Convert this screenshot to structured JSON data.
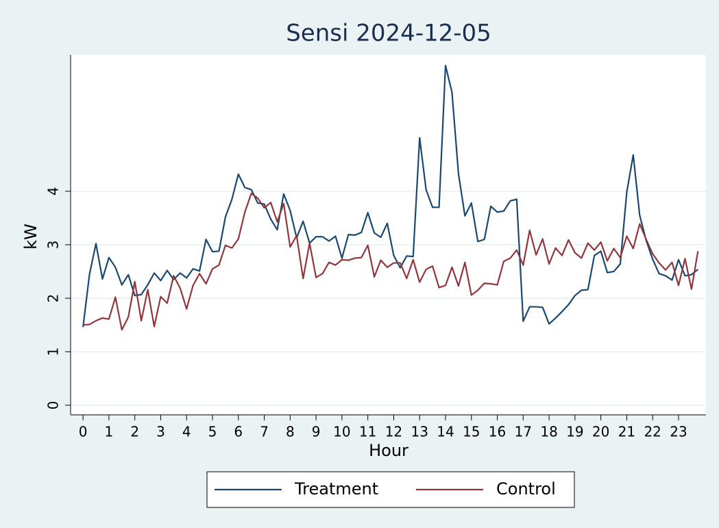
{
  "chart_data": {
    "type": "line",
    "title": "Sensi 2024-12-05",
    "x_label": "Hour",
    "y_label": "kW",
    "x": [
      0,
      0.25,
      0.5,
      0.75,
      1,
      1.25,
      1.5,
      1.75,
      2,
      2.25,
      2.5,
      2.75,
      3,
      3.25,
      3.5,
      3.75,
      4,
      4.25,
      4.5,
      4.75,
      5,
      5.25,
      5.5,
      5.75,
      6,
      6.25,
      6.5,
      6.75,
      7,
      7.25,
      7.5,
      7.75,
      8,
      8.25,
      8.5,
      8.75,
      9,
      9.25,
      9.5,
      9.75,
      10,
      10.25,
      10.5,
      10.75,
      11,
      11.25,
      11.5,
      11.75,
      12,
      12.25,
      12.5,
      12.75,
      13,
      13.25,
      13.5,
      13.75,
      14,
      14.25,
      14.5,
      14.75,
      15,
      15.25,
      15.5,
      15.75,
      16,
      16.25,
      16.5,
      16.75,
      17,
      17.25,
      17.5,
      17.75,
      18,
      18.25,
      18.5,
      18.75,
      19,
      19.25,
      19.5,
      19.75,
      20,
      20.25,
      20.5,
      20.75,
      21,
      21.25,
      21.5,
      21.75,
      22,
      22.25,
      22.5,
      22.75,
      23,
      23.25,
      23.5,
      23.75
    ],
    "series": [
      {
        "name": "Treatment",
        "color": "#1a476f",
        "values": [
          1.46,
          2.45,
          3.02,
          2.36,
          2.76,
          2.58,
          2.25,
          2.44,
          2.05,
          2.07,
          2.25,
          2.47,
          2.33,
          2.52,
          2.35,
          2.47,
          2.38,
          2.55,
          2.51,
          3.1,
          2.87,
          2.88,
          3.52,
          3.85,
          4.32,
          4.07,
          4.03,
          3.78,
          3.76,
          3.48,
          3.28,
          3.95,
          3.64,
          3.13,
          3.44,
          3.03,
          3.15,
          3.15,
          3.07,
          3.16,
          2.75,
          3.19,
          3.18,
          3.23,
          3.6,
          3.22,
          3.14,
          3.4,
          2.8,
          2.57,
          2.79,
          2.78,
          5.0,
          4.03,
          3.7,
          3.7,
          6.35,
          5.85,
          4.33,
          3.54,
          3.78,
          3.06,
          3.1,
          3.72,
          3.61,
          3.63,
          3.82,
          3.85,
          1.57,
          1.84,
          1.84,
          1.83,
          1.52,
          1.63,
          1.75,
          1.88,
          2.05,
          2.15,
          2.16,
          2.8,
          2.88,
          2.48,
          2.5,
          2.64,
          3.98,
          4.68,
          3.55,
          3.08,
          2.73,
          2.46,
          2.42,
          2.34,
          2.72,
          2.42,
          2.44,
          2.54
        ]
      },
      {
        "name": "Control",
        "color": "#90353b",
        "values": [
          1.5,
          1.51,
          1.58,
          1.63,
          1.61,
          2.02,
          1.41,
          1.65,
          2.31,
          1.58,
          2.16,
          1.47,
          2.03,
          1.91,
          2.42,
          2.19,
          1.8,
          2.24,
          2.46,
          2.27,
          2.55,
          2.62,
          2.99,
          2.94,
          3.11,
          3.61,
          3.96,
          3.87,
          3.69,
          3.79,
          3.43,
          3.77,
          2.96,
          3.17,
          2.37,
          3.03,
          2.39,
          2.46,
          2.67,
          2.62,
          2.72,
          2.71,
          2.75,
          2.76,
          2.99,
          2.4,
          2.71,
          2.58,
          2.66,
          2.66,
          2.37,
          2.72,
          2.3,
          2.54,
          2.6,
          2.2,
          2.24,
          2.58,
          2.23,
          2.67,
          2.06,
          2.15,
          2.28,
          2.27,
          2.25,
          2.69,
          2.75,
          2.9,
          2.62,
          3.27,
          2.81,
          3.11,
          2.64,
          2.94,
          2.8,
          3.09,
          2.85,
          2.75,
          3.03,
          2.9,
          3.05,
          2.7,
          2.93,
          2.76,
          3.16,
          2.93,
          3.39,
          3.1,
          2.83,
          2.66,
          2.53,
          2.67,
          2.24,
          2.74,
          2.17,
          2.88
        ]
      }
    ],
    "xlim": [
      -0.48,
      24.06
    ],
    "ylim": [
      -0.18,
      6.55
    ],
    "xticks": [
      0,
      1,
      2,
      3,
      4,
      5,
      6,
      7,
      8,
      9,
      10,
      11,
      12,
      13,
      14,
      15,
      16,
      17,
      18,
      19,
      20,
      21,
      22,
      23
    ],
    "yticks": [
      0,
      1,
      2,
      3,
      4
    ],
    "grid": true,
    "legend": "bottom"
  }
}
